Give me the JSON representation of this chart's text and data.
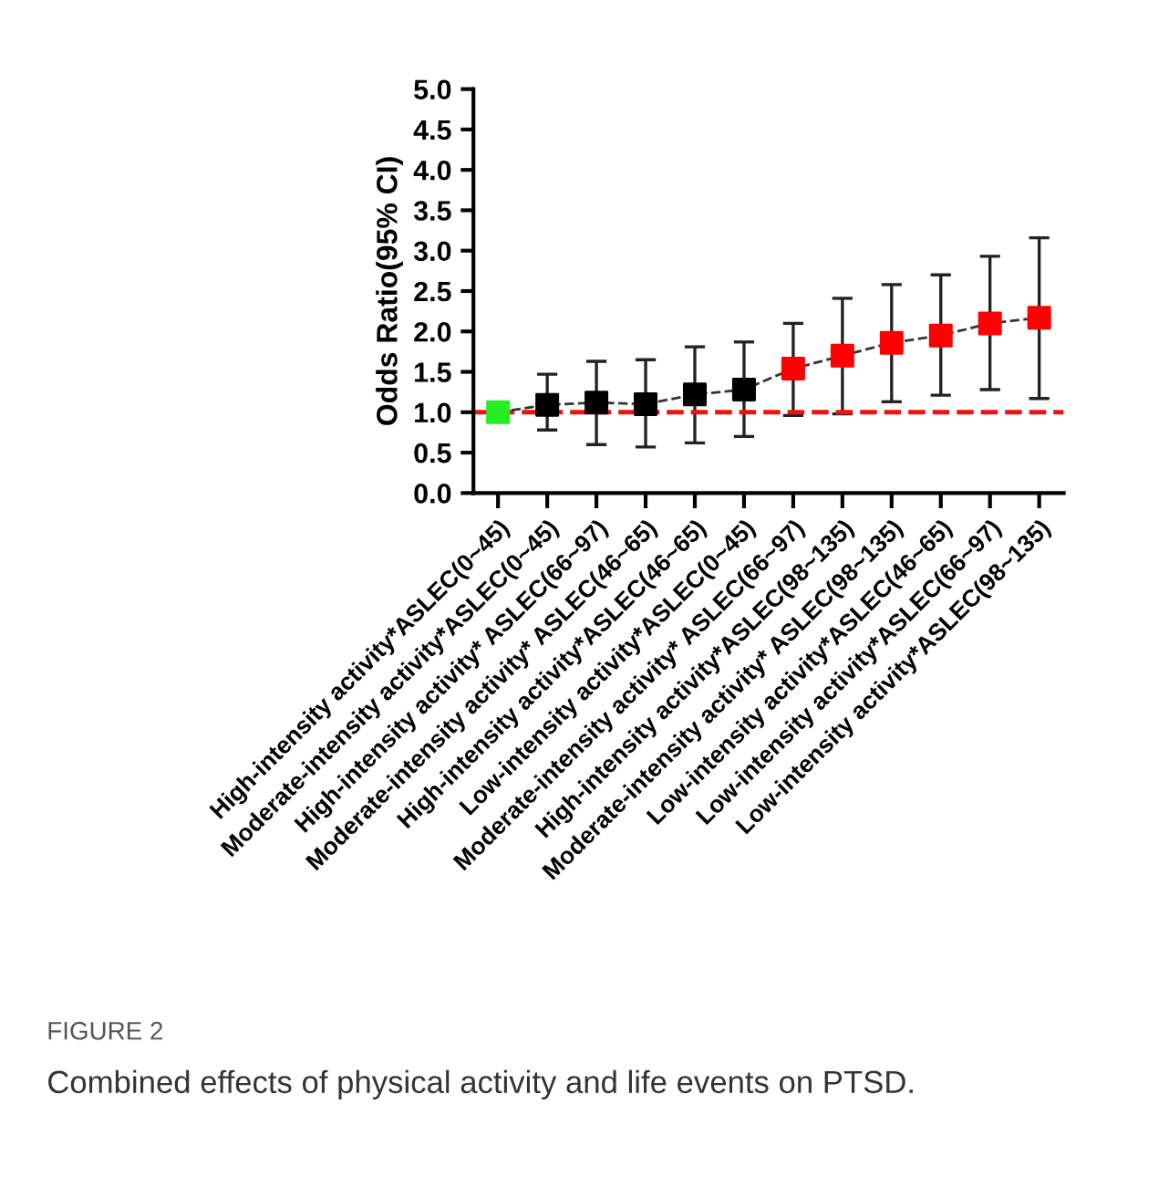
{
  "chart_data": {
    "type": "line",
    "ylabel": "Odds Ratio(95% CI)",
    "categories": [
      "High-intensity activity*ASLEC(0~45)",
      "Moderate-intensity activity*ASLEC(0~45)",
      "High-intensity activity* ASLEC(66~97)",
      "Moderate-intensity activity* ASLEC(46~65)",
      "High-intensity activity*ASLEC(46~65)",
      "Low-intensity activity*ASLEC(0~45)",
      "Moderate-intensity activity* ASLEC(66~97)",
      "High-intensity activity*ASLEC(98~135)",
      "Moderate-intensity activity* ASLEC(98~135)",
      "Low-intensity activity*ASLEC(46~65)",
      "Low-intensity activity*ASLEC(66~97)",
      "Low-intensity activity*ASLEC(98~135)"
    ],
    "series": [
      {
        "color": "#333333",
        "colors": [
          "#22ee22",
          "#000000",
          "#000000",
          "#000000",
          "#000000",
          "#000000",
          "#ff0000",
          "#ff0000",
          "#ff0000",
          "#ff0000",
          "#ff0000",
          "#ff0000"
        ],
        "values": [
          1.0,
          1.09,
          1.12,
          1.1,
          1.22,
          1.28,
          1.54,
          1.7,
          1.86,
          1.95,
          2.1,
          2.17
        ],
        "errors": [
          null,
          [
            0.78,
            1.47
          ],
          [
            0.6,
            1.63
          ],
          [
            0.57,
            1.65
          ],
          [
            0.62,
            1.81
          ],
          [
            0.7,
            1.87
          ],
          [
            0.96,
            2.1
          ],
          [
            0.98,
            2.41
          ],
          [
            1.13,
            2.58
          ],
          [
            1.21,
            2.7
          ],
          [
            1.28,
            2.93
          ],
          [
            1.17,
            3.16
          ]
        ]
      }
    ],
    "marker": "square",
    "line_style": "dashed",
    "ylim": [
      0,
      5
    ],
    "yticks": [
      {
        "value": 0,
        "label": "0.0"
      },
      {
        "value": 0.5,
        "label": "0.5"
      },
      {
        "value": 1,
        "label": "1.0"
      },
      {
        "value": 1.5,
        "label": "1.5"
      },
      {
        "value": 2,
        "label": "2.0"
      },
      {
        "value": 2.5,
        "label": "2.5"
      },
      {
        "value": 3,
        "label": "3.0"
      },
      {
        "value": 3.5,
        "label": "3.5"
      },
      {
        "value": 4,
        "label": "4.0"
      },
      {
        "value": 4.5,
        "label": "4.5"
      },
      {
        "value": 5,
        "label": "5.0"
      }
    ],
    "ref_lines": [
      {
        "axis": "y",
        "value": 1,
        "label": null,
        "color": "#ee1111",
        "line_style": "dashed"
      }
    ],
    "grid": false,
    "annotations": [
      "FIGURE 2",
      "Combined effects of physical activity and life events on PTSD."
    ]
  }
}
